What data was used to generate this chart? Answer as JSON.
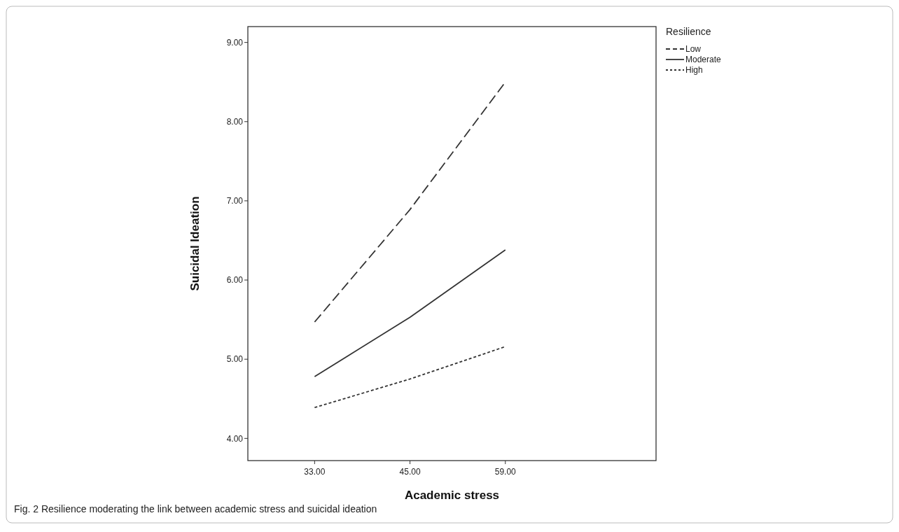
{
  "chart_data": {
    "type": "line",
    "title": "Fig. 2  Resilience moderating the link between academic stress and suicidal ideation",
    "xlabel": "Academic stress",
    "ylabel": "Suicidal Ideation",
    "legend_title": "Resilience",
    "categories": [
      "33.00",
      "45.00",
      "59.00"
    ],
    "ylim": [
      3.72,
      9.2
    ],
    "yticks": [
      {
        "value": 4,
        "label": "4.00"
      },
      {
        "value": 5,
        "label": "5.00"
      },
      {
        "value": 6,
        "label": "6.00"
      },
      {
        "value": 7,
        "label": "7.00"
      },
      {
        "value": 8,
        "label": "8.00"
      },
      {
        "value": 9,
        "label": "9.00"
      }
    ],
    "series": [
      {
        "name": "Low",
        "color": "#333333",
        "line_style": "dashed",
        "values": [
          5.47,
          6.89,
          8.5
        ]
      },
      {
        "name": "Moderate",
        "color": "#333333",
        "line_style": "solid",
        "values": [
          4.78,
          5.53,
          6.38
        ]
      },
      {
        "name": "High",
        "color": "#333333",
        "line_style": "dotted",
        "values": [
          4.39,
          4.75,
          5.16
        ]
      }
    ],
    "legend": "top right",
    "marker": "none",
    "grid": false
  }
}
